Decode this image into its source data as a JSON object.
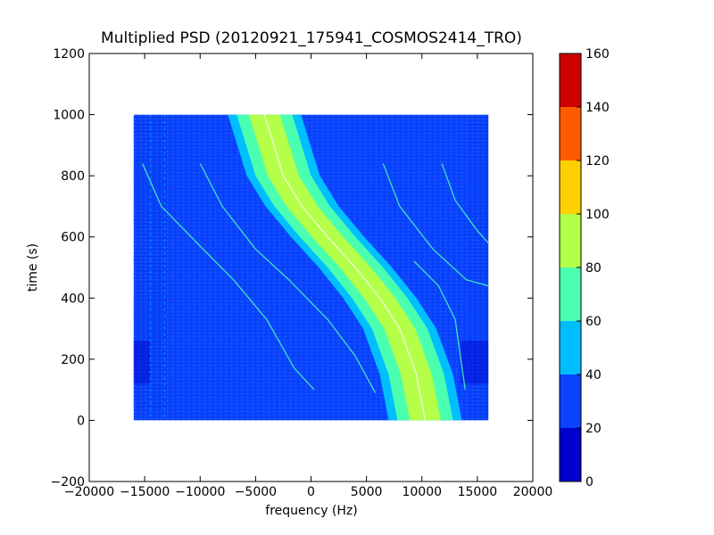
{
  "chart_data": {
    "type": "heatmap",
    "title": "Multiplied PSD (20120921_175941_COSMOS2414_TRO)",
    "xlabel": "frequency (Hz)",
    "ylabel": "time (s)",
    "xlim": [
      -20000,
      20000
    ],
    "ylim": [
      -200,
      1200
    ],
    "x_ticks": [
      -20000,
      -15000,
      -10000,
      -5000,
      0,
      5000,
      10000,
      15000,
      20000
    ],
    "y_ticks": [
      -200,
      0,
      200,
      400,
      600,
      800,
      1000,
      1200
    ],
    "x_tick_labels": [
      "−20000",
      "−15000",
      "−10000",
      "−5000",
      "0",
      "5000",
      "10000",
      "15000",
      "20000"
    ],
    "y_tick_labels": [
      "−200",
      "0",
      "200",
      "400",
      "600",
      "800",
      "1000",
      "1200"
    ],
    "data_extent": {
      "x": [
        -16000,
        16000
      ],
      "y": [
        0,
        1000
      ]
    },
    "grid": false,
    "colorbar": {
      "levels": [
        0,
        20,
        40,
        60,
        80,
        100,
        120,
        140,
        160
      ],
      "tick_labels": [
        "0",
        "20",
        "40",
        "60",
        "80",
        "100",
        "120",
        "140",
        "160"
      ],
      "colors": [
        "#0000cd",
        "#0a44ff",
        "#00bfff",
        "#4bffb0",
        "#b4ff48",
        "#ffd000",
        "#ff5a00",
        "#cd0000"
      ]
    },
    "background_level_color": "#0a44ff",
    "main_trace": {
      "description_free": true,
      "center_points": [
        [
          -4200,
          1000
        ],
        [
          -2500,
          800
        ],
        [
          -800,
          700
        ],
        [
          1500,
          600
        ],
        [
          4000,
          500
        ],
        [
          6200,
          400
        ],
        [
          8000,
          300
        ],
        [
          9500,
          150
        ],
        [
          10300,
          0
        ]
      ],
      "band_levels": [
        {
          "color": "#00bfff",
          "half_width": 3300
        },
        {
          "color": "#4bffb0",
          "half_width": 2500
        },
        {
          "color": "#b4ff48",
          "half_width": 1400
        }
      ],
      "peak_color": "#ffffff"
    },
    "weak_traces": [
      [
        [
          -15200,
          840
        ],
        [
          -13500,
          700
        ],
        [
          -10000,
          570
        ],
        [
          -7000,
          460
        ],
        [
          -4000,
          330
        ],
        [
          -1500,
          170
        ],
        [
          300,
          100
        ]
      ],
      [
        [
          -10000,
          840
        ],
        [
          -8000,
          700
        ],
        [
          -5000,
          560
        ],
        [
          -2000,
          460
        ],
        [
          1500,
          330
        ],
        [
          4000,
          210
        ],
        [
          5800,
          90
        ]
      ],
      [
        [
          6500,
          840
        ],
        [
          8000,
          700
        ],
        [
          11000,
          560
        ],
        [
          14000,
          460
        ],
        [
          16000,
          440
        ]
      ],
      [
        [
          11800,
          840
        ],
        [
          13000,
          720
        ],
        [
          15000,
          620
        ],
        [
          16000,
          580
        ]
      ],
      [
        [
          9300,
          520
        ],
        [
          11500,
          440
        ],
        [
          13000,
          330
        ],
        [
          13900,
          100
        ]
      ]
    ],
    "vertical_lines_x": [
      -14500,
      -13200
    ]
  }
}
